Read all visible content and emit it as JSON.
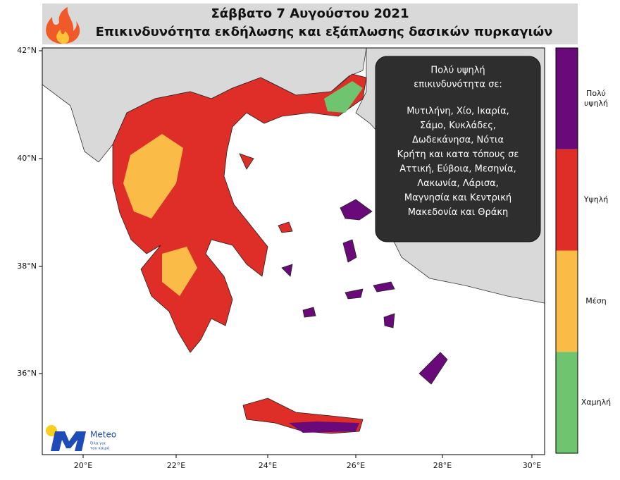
{
  "header": {
    "title": "Σάββατο 7 Αυγούστου 2021",
    "subtitle": "Επικινδυνότητα εκδήλωσης και εξάπλωσης δασικών πυρκαγιών"
  },
  "map": {
    "lat_labels": [
      "42°N",
      "40°N",
      "38°N",
      "36°N"
    ],
    "lon_labels": [
      "20°E",
      "22°E",
      "24°E",
      "26°E",
      "28°E",
      "30°E"
    ]
  },
  "annotation": {
    "heading": [
      "Πολύ υψηλή",
      "επικινδυνότητα σε:"
    ],
    "lines": [
      "Μυτιλήνη, Χίο, Ικαρία,",
      "Σάμο, Κυκλάδες,",
      "Δωδεκάνησα, Νότια",
      "Κρήτη και κατα τόπους σε",
      "Αττική, Εύβοια, Μεσηνία,",
      "Λακωνία, Λάρισα,",
      "Μαγνησία και Κεντρική",
      "Μακεδονία και Θράκη"
    ]
  },
  "legend": {
    "items": [
      {
        "label": [
          "Πολύ",
          "υψηλή"
        ],
        "color": "#6a0a7a"
      },
      {
        "label": [
          "Υψηλή"
        ],
        "color": "#de2e27"
      },
      {
        "label": [
          "Μέση"
        ],
        "color": "#fbbc47"
      },
      {
        "label": [
          "Χαμηλή"
        ],
        "color": "#6fc46f"
      }
    ]
  },
  "logo": {
    "name": "Meteo",
    "tagline": [
      "Όλα για",
      "τον καιρό"
    ]
  }
}
